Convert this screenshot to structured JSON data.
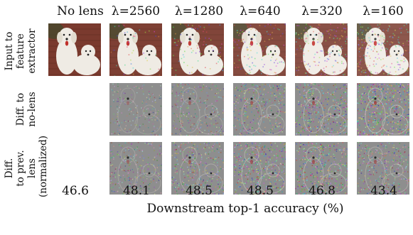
{
  "columns": [
    {
      "header": "No lens",
      "accuracy": "46.6"
    },
    {
      "header": "λ=2560",
      "accuracy": "48.1"
    },
    {
      "header": "λ=1280",
      "accuracy": "48.5"
    },
    {
      "header": "λ=640",
      "accuracy": "48.5"
    },
    {
      "header": "λ=320",
      "accuracy": "46.8"
    },
    {
      "header": "λ=160",
      "accuracy": "43.4"
    }
  ],
  "rows": [
    {
      "label_lines": [
        "Input to",
        "feature",
        "extractor"
      ]
    },
    {
      "label_lines": [
        "Diff. to",
        "no-lens"
      ]
    },
    {
      "label_lines": [
        "Diff.",
        "to prev. lens",
        "(normalized)"
      ]
    }
  ],
  "xlabel": "Downstream top-1 accuracy (%)",
  "colors": {
    "photo_background": "#7a3a2e",
    "dog_fur": "#efebe4",
    "diff_gray": "#8e8e8e"
  }
}
